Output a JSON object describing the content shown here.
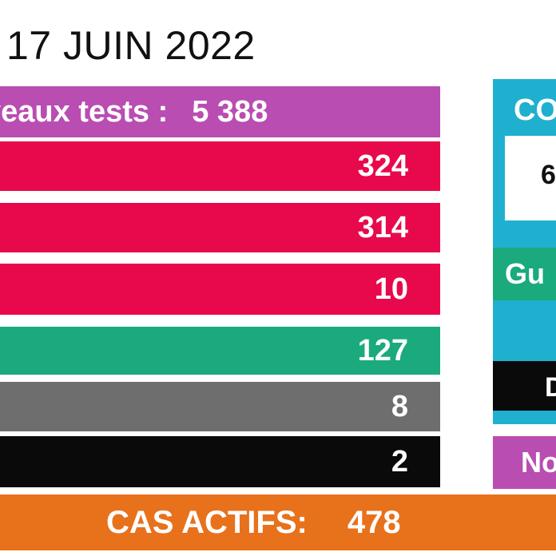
{
  "header": {
    "date": "17 JUIN 2022"
  },
  "bars": [
    {
      "color": "#b94db2",
      "label": "veaux tests :",
      "value": "5 388"
    },
    {
      "color": "#e8094c",
      "value": "324"
    },
    {
      "color": "#e8094c",
      "value": "314"
    },
    {
      "color": "#e8094c",
      "value": "10"
    },
    {
      "color": "#1aaa7d",
      "value": "127"
    },
    {
      "color": "#6e6e6e",
      "value": "8"
    },
    {
      "color": "#0a0a0a",
      "value": "2"
    }
  ],
  "side_panel": {
    "title": "CO",
    "box_value": "6",
    "green_label": "Gu",
    "black_label": "D",
    "purple_label": "No",
    "colors": {
      "panel": "#1fb0cf",
      "green": "#1aaa7d",
      "black": "#0a0a0a",
      "purple": "#b94db2"
    }
  },
  "footer": {
    "label": "CAS ACTIFS:",
    "value": "478",
    "color": "#e8711c"
  }
}
